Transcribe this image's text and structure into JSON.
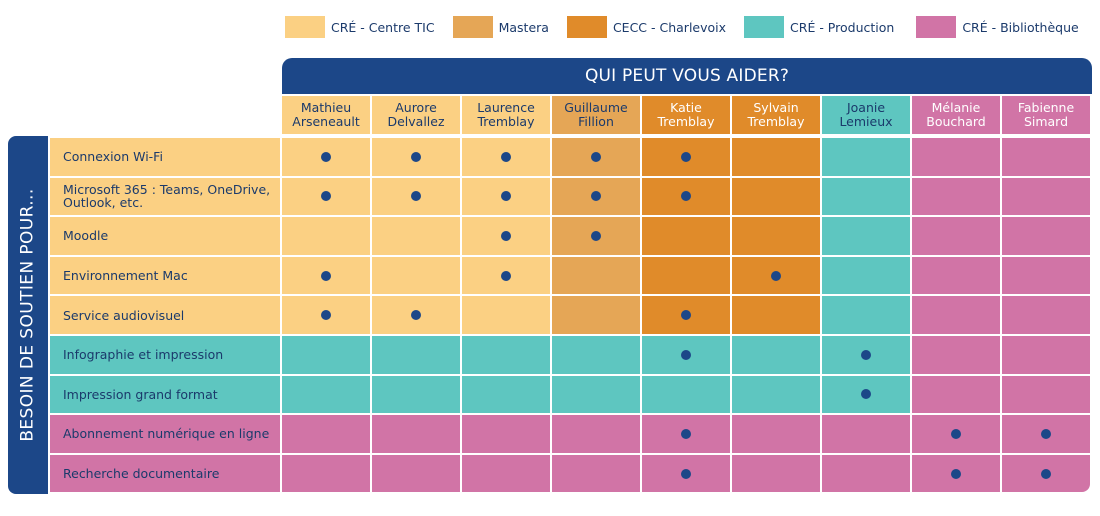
{
  "legend": [
    {
      "label": "CRÉ - Centre TIC",
      "color": "#fbd083"
    },
    {
      "label": "Mastera",
      "color": "#e5a656"
    },
    {
      "label": "CECC - Charlevoix",
      "color": "#e08b2a"
    },
    {
      "label": "CRÉ - Production",
      "color": "#5ec6c0"
    },
    {
      "label": "CRÉ - Bibliothèque",
      "color": "#d174a6"
    }
  ],
  "header_title": "QUI PEUT VOUS AIDER?",
  "side_title": "BESOIN DE SOUTIEN POUR...",
  "people": [
    {
      "first": "Mathieu",
      "last": "Arseneault",
      "group": 0
    },
    {
      "first": "Aurore",
      "last": "Delvallez",
      "group": 0
    },
    {
      "first": "Laurence",
      "last": "Tremblay",
      "group": 0
    },
    {
      "first": "Guillaume",
      "last": "Fillion",
      "group": 1
    },
    {
      "first": "Katie",
      "last": "Tremblay",
      "group": 2
    },
    {
      "first": "Sylvain",
      "last": "Tremblay",
      "group": 2
    },
    {
      "first": "Joanie",
      "last": "Lemieux",
      "group": 3
    },
    {
      "first": "Mélanie",
      "last": "Bouchard",
      "group": 4
    },
    {
      "first": "Fabienne",
      "last": "Simard",
      "group": 4
    }
  ],
  "rows": [
    {
      "label": "Connexion Wi-Fi",
      "group": 0,
      "dots": [
        1,
        1,
        1,
        1,
        1,
        0,
        0,
        0,
        0
      ]
    },
    {
      "label": "Microsoft 365 : Teams, OneDrive, Outlook, etc.",
      "group": 0,
      "dots": [
        1,
        1,
        1,
        1,
        1,
        0,
        0,
        0,
        0
      ]
    },
    {
      "label": "Moodle",
      "group": 0,
      "dots": [
        0,
        0,
        1,
        1,
        0,
        0,
        0,
        0,
        0
      ]
    },
    {
      "label": "Environnement Mac",
      "group": 0,
      "dots": [
        1,
        0,
        1,
        0,
        0,
        1,
        0,
        0,
        0
      ]
    },
    {
      "label": "Service audiovisuel",
      "group": 0,
      "dots": [
        1,
        1,
        0,
        0,
        1,
        0,
        0,
        0,
        0
      ]
    },
    {
      "label": "Infographie et impression",
      "group": 3,
      "dots": [
        0,
        0,
        0,
        0,
        1,
        0,
        1,
        0,
        0
      ]
    },
    {
      "label": "Impression grand format",
      "group": 3,
      "dots": [
        0,
        0,
        0,
        0,
        0,
        0,
        1,
        0,
        0
      ]
    },
    {
      "label": "Abonnement numérique en ligne",
      "group": 4,
      "dots": [
        0,
        0,
        0,
        0,
        1,
        0,
        0,
        1,
        1
      ]
    },
    {
      "label": "Recherche documentaire",
      "group": 4,
      "dots": [
        0,
        0,
        0,
        0,
        1,
        0,
        0,
        1,
        1
      ]
    }
  ]
}
